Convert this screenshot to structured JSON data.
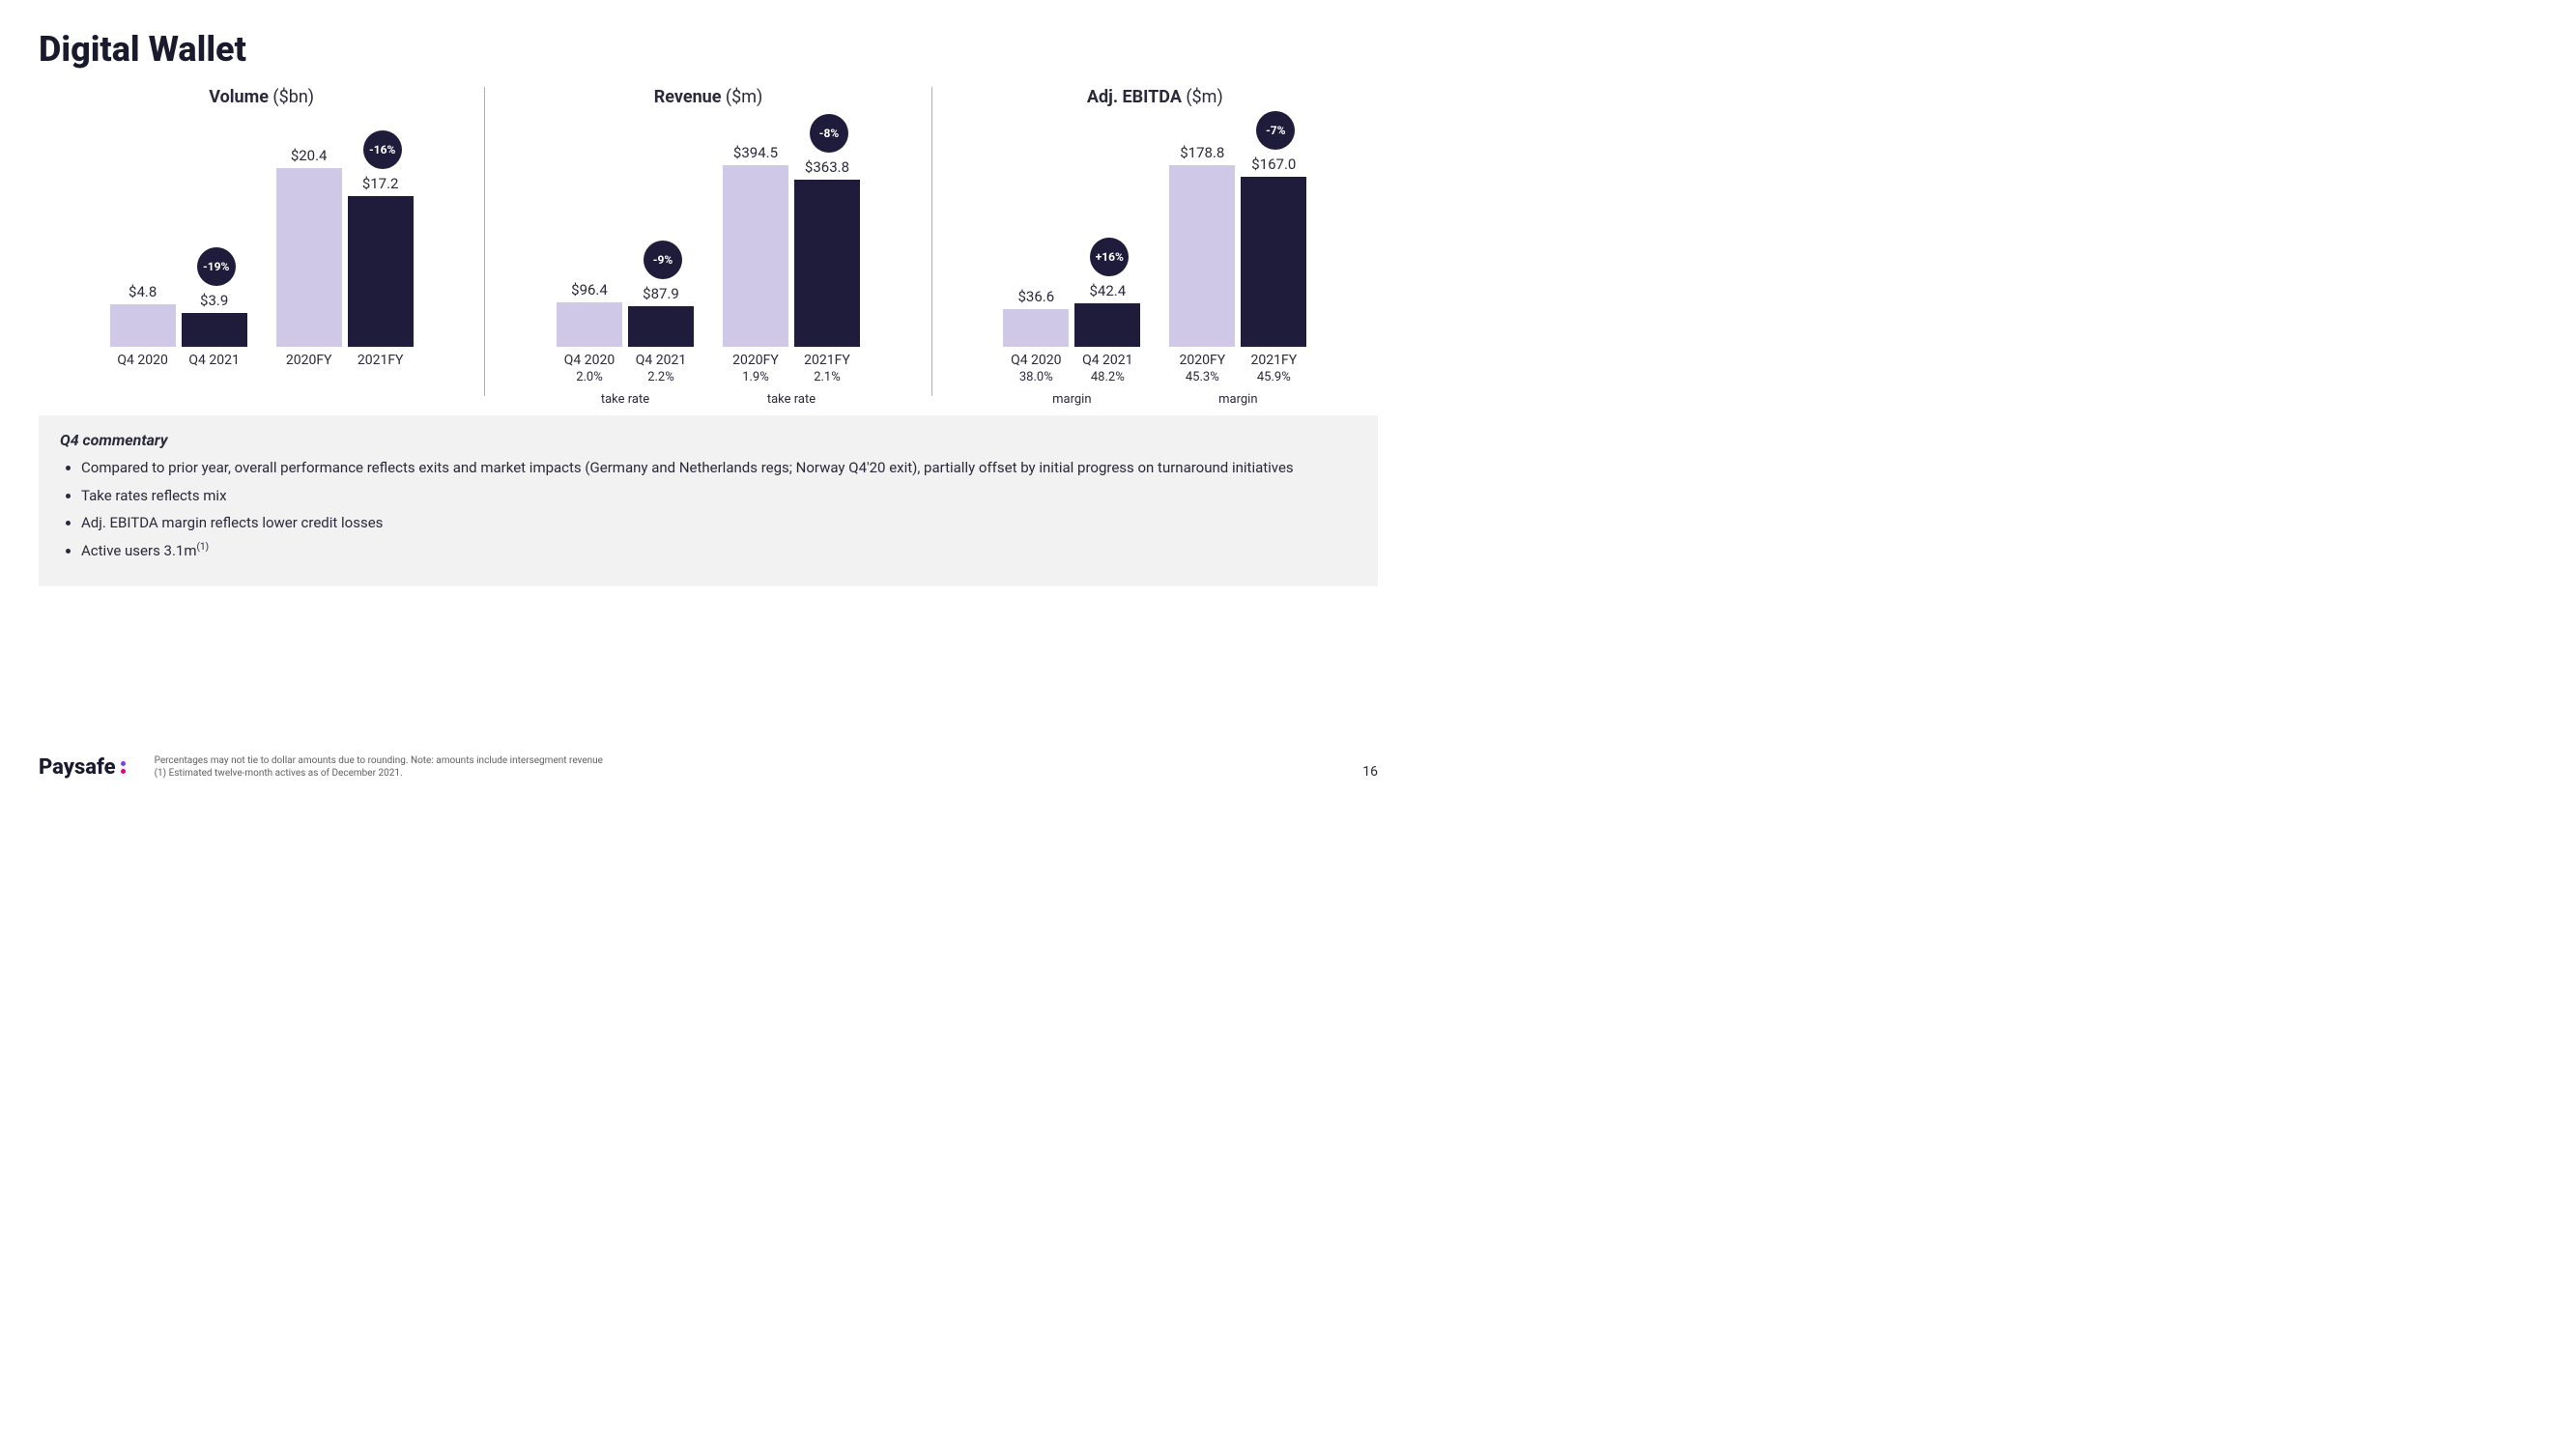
{
  "title": "Digital Wallet",
  "colors": {
    "bar_light": "#cfc8e6",
    "bar_dark": "#1f1b3a",
    "badge_bg": "#1f1b3a",
    "badge_text": "#ffffff",
    "text": "#2a2a3a",
    "bg": "#ffffff",
    "commentary_bg": "#f2f2f2",
    "divider": "#b0b0b0"
  },
  "charts": {
    "volume": {
      "title_bold": "Volume",
      "title_unit": " ($bn)",
      "ylim": 22,
      "pairs": [
        {
          "a": {
            "label": "Q4 2020",
            "value": 4.8,
            "display": "$4.8"
          },
          "b": {
            "label": "Q4 2021",
            "value": 3.9,
            "display": "$3.9"
          },
          "badge": "-19%"
        },
        {
          "a": {
            "label": "2020FY",
            "value": 20.4,
            "display": "$20.4"
          },
          "b": {
            "label": "2021FY",
            "value": 17.2,
            "display": "$17.2"
          },
          "badge": "-16%"
        }
      ],
      "sub": null
    },
    "revenue": {
      "title_bold": "Revenue",
      "title_unit": " ($m)",
      "ylim": 420,
      "pairs": [
        {
          "a": {
            "label": "Q4 2020",
            "value": 96.4,
            "display": "$96.4",
            "sub": "2.0%"
          },
          "b": {
            "label": "Q4 2021",
            "value": 87.9,
            "display": "$87.9",
            "sub": "2.2%"
          },
          "badge": "-9%",
          "sub_caption": "take rate"
        },
        {
          "a": {
            "label": "2020FY",
            "value": 394.5,
            "display": "$394.5",
            "sub": "1.9%"
          },
          "b": {
            "label": "2021FY",
            "value": 363.8,
            "display": "$363.8",
            "sub": "2.1%"
          },
          "badge": "-8%",
          "sub_caption": "take rate"
        }
      ]
    },
    "ebitda": {
      "title_bold": "Adj. EBITDA",
      "title_unit": " ($m)",
      "ylim": 190,
      "pairs": [
        {
          "a": {
            "label": "Q4 2020",
            "value": 36.6,
            "display": "$36.6",
            "sub": "38.0%"
          },
          "b": {
            "label": "Q4 2021",
            "value": 42.4,
            "display": "$42.4",
            "sub": "48.2%"
          },
          "badge": "+16%",
          "sub_caption": "margin"
        },
        {
          "a": {
            "label": "2020FY",
            "value": 178.8,
            "display": "$178.8",
            "sub": "45.3%"
          },
          "b": {
            "label": "2021FY",
            "value": 167.0,
            "display": "$167.0",
            "sub": "45.9%"
          },
          "badge": "-7%",
          "sub_caption": "margin"
        }
      ]
    }
  },
  "commentary": {
    "title": "Q4 commentary",
    "bullets": [
      "Compared to prior year, overall performance reflects exits and market impacts (Germany and Netherlands regs; Norway Q4'20 exit), partially offset by initial progress on turnaround initiatives",
      "Take rates reflects mix",
      "Adj. EBITDA margin reflects lower credit losses",
      "Active users 3.1m"
    ],
    "bullet3_sup": "(1)"
  },
  "footer": {
    "logo_text": "Paysafe",
    "logo_dot_colors": [
      "#7b3ff2",
      "#e6007e"
    ],
    "note1": "Percentages may not tie to dollar amounts due to rounding. Note: amounts include intersegment revenue",
    "note2": "(1)   Estimated twelve-month actives as of December 2021.",
    "page_num": "16"
  }
}
